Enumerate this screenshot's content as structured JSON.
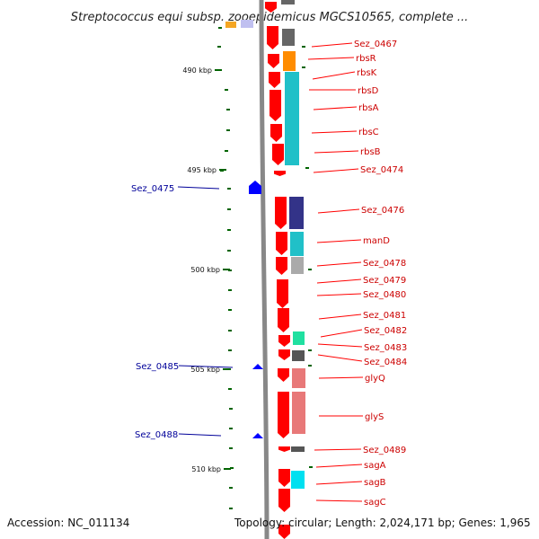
{
  "title": "Streptococcus equi subsp. zooepidemicus MGCS10565, complete ...",
  "accession": "Accession: NC_011134",
  "topology": "Topology: circular; Length: 2,024,171 bp; Genes: 1,965",
  "colors": {
    "forward_gene": "#ff0000",
    "reverse_gene": "#0000ff",
    "forward_label": "#cc0000",
    "reverse_label": "#000099",
    "axis": "#888888",
    "tick": "#006400"
  },
  "scale_labels": [
    "490 kbp",
    "495 kbp",
    "500 kbp",
    "505 kbp",
    "510 kbp"
  ],
  "forward_gene_labels": [
    "Sez_0467",
    "rbsR",
    "rbsK",
    "rbsD",
    "rbsA",
    "rbsC",
    "rbsB",
    "Sez_0474",
    "Sez_0476",
    "manD",
    "Sez_0478",
    "Sez_0479",
    "Sez_0480",
    "Sez_0481",
    "Sez_0482",
    "Sez_0483",
    "Sez_0484",
    "glyQ",
    "glyS",
    "Sez_0489",
    "sagA",
    "sagB",
    "sagC"
  ],
  "reverse_gene_labels": [
    "Sez_0475",
    "Sez_0485",
    "Sez_0488"
  ],
  "cog_colors": [
    "#666666",
    "#ff8c00",
    "#20c0c8",
    "#333388",
    "#20c0c8",
    "#aaaaaa",
    "#20e0a0",
    "#555555",
    "#e87878",
    "#00e0f0"
  ]
}
